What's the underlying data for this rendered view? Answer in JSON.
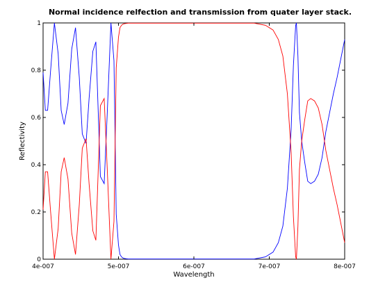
{
  "chart_data": {
    "type": "line",
    "title": "Normal incidence relfection and transmission from quater layer stack.",
    "xlabel": "Wavelength",
    "ylabel": "Reflectivity",
    "xlim": [
      4e-07,
      8e-07
    ],
    "ylim": [
      0,
      1
    ],
    "xticks": [
      4e-07,
      5e-07,
      6e-07,
      7e-07,
      8e-07
    ],
    "xtick_labels": [
      "4e-007",
      "5e-007",
      "6e-007",
      "7e-007",
      "8e-007"
    ],
    "yticks": [
      0,
      0.2,
      0.4,
      0.6,
      0.8,
      1
    ],
    "ytick_labels": [
      "0",
      "0.2",
      "0.4",
      "0.6",
      "0.8",
      "1"
    ],
    "grid": false,
    "legend": "none",
    "x": [
      4e-07,
      4.03e-07,
      4.06e-07,
      4.1e-07,
      4.15e-07,
      4.2e-07,
      4.24e-07,
      4.28e-07,
      4.33e-07,
      4.38e-07,
      4.43e-07,
      4.48e-07,
      4.52e-07,
      4.57e-07,
      4.61e-07,
      4.66e-07,
      4.7e-07,
      4.76e-07,
      4.81e-07,
      4.85e-07,
      4.9e-07,
      4.94e-07,
      4.97e-07,
      5e-07,
      5.02e-07,
      5.04e-07,
      5.06e-07,
      5.08e-07,
      5.1e-07,
      5.13e-07,
      5.17e-07,
      5.22e-07,
      5.3e-07,
      5.45e-07,
      5.6e-07,
      5.8e-07,
      6e-07,
      6.2e-07,
      6.4e-07,
      6.6e-07,
      6.8e-07,
      6.95e-07,
      7.05e-07,
      7.12e-07,
      7.18e-07,
      7.24e-07,
      7.29e-07,
      7.32e-07,
      7.35e-07,
      7.36e-07,
      7.38e-07,
      7.4e-07,
      7.43e-07,
      7.47e-07,
      7.51e-07,
      7.55e-07,
      7.6e-07,
      7.65e-07,
      7.7e-07,
      7.75e-07,
      7.8e-07,
      7.85e-07,
      7.9e-07,
      7.95e-07,
      8e-07
    ],
    "series": [
      {
        "color": "#0000ff",
        "values": [
          0.79,
          0.63,
          0.63,
          0.8,
          1.0,
          0.87,
          0.63,
          0.57,
          0.66,
          0.89,
          0.98,
          0.77,
          0.53,
          0.49,
          0.68,
          0.88,
          0.92,
          0.35,
          0.32,
          0.61,
          1.0,
          0.84,
          0.19,
          0.06,
          0.02,
          0.01,
          0.005,
          0.003,
          0.002,
          0.001,
          0.001,
          0.001,
          0.001,
          0.001,
          0.001,
          0.001,
          0.001,
          0.001,
          0.001,
          0.001,
          0.001,
          0.01,
          0.03,
          0.07,
          0.14,
          0.3,
          0.55,
          0.82,
          0.99,
          1.0,
          0.86,
          0.62,
          0.5,
          0.41,
          0.33,
          0.32,
          0.33,
          0.36,
          0.43,
          0.54,
          0.62,
          0.7,
          0.77,
          0.85,
          0.93
        ]
      },
      {
        "color": "#ff0000",
        "values": [
          0.21,
          0.37,
          0.37,
          0.2,
          0.0,
          0.13,
          0.37,
          0.43,
          0.34,
          0.11,
          0.02,
          0.23,
          0.47,
          0.51,
          0.32,
          0.12,
          0.08,
          0.65,
          0.68,
          0.39,
          0.0,
          0.16,
          0.81,
          0.94,
          0.98,
          0.99,
          0.995,
          0.997,
          0.998,
          0.999,
          0.999,
          0.999,
          0.999,
          0.999,
          0.999,
          0.999,
          0.999,
          0.999,
          0.999,
          0.999,
          0.999,
          0.99,
          0.97,
          0.93,
          0.86,
          0.7,
          0.45,
          0.18,
          0.01,
          0.0,
          0.14,
          0.38,
          0.5,
          0.59,
          0.67,
          0.68,
          0.67,
          0.64,
          0.57,
          0.46,
          0.38,
          0.3,
          0.23,
          0.15,
          0.07
        ]
      }
    ]
  }
}
